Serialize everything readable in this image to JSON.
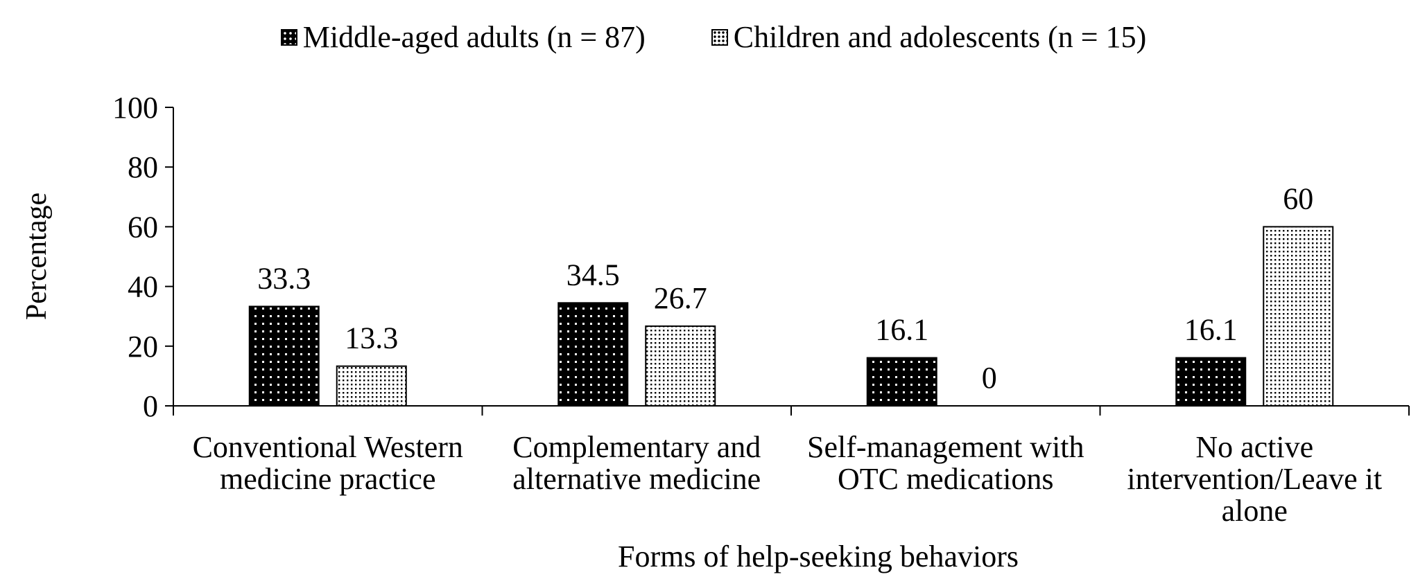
{
  "chart_data": {
    "type": "bar",
    "title": "",
    "xlabel": "Forms of help-seeking behaviors",
    "ylabel": "Percentage",
    "ylim": [
      0,
      100
    ],
    "yticks": [
      0,
      20,
      40,
      60,
      80,
      100
    ],
    "grid": false,
    "legend_position": "top-center",
    "categories": [
      [
        "Conventional Western",
        "medicine practice"
      ],
      [
        "Complementary and",
        "alternative medicine"
      ],
      [
        "Self-management with",
        "OTC medications"
      ],
      [
        "No active",
        "intervention/Leave it",
        "alone"
      ]
    ],
    "series": [
      {
        "name": "Middle-aged adults (n = 87)",
        "values": [
          33.3,
          34.5,
          16.1,
          16.1
        ],
        "labels": [
          "33.3",
          "34.5",
          "16.1",
          "16.1"
        ],
        "pattern": "dark-dotted",
        "color": "#000000"
      },
      {
        "name": "Children and adolescents (n = 15)",
        "values": [
          13.3,
          26.7,
          0,
          60
        ],
        "labels": [
          "13.3",
          "26.7",
          "0",
          "60"
        ],
        "pattern": "light-dotted",
        "color": "#ffffff"
      }
    ]
  }
}
